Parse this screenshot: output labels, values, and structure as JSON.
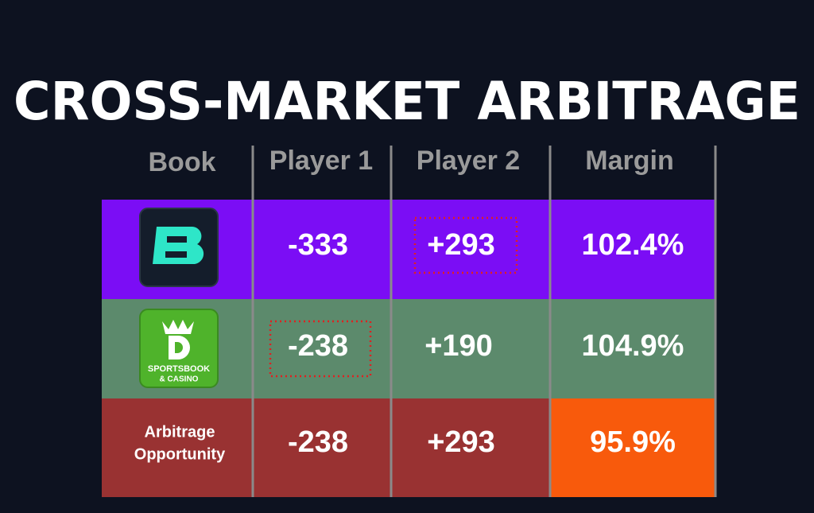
{
  "title": "CROSS-MARKET ARBITRAGE",
  "table": {
    "columns": [
      "Book",
      "Player 1",
      "Player 2",
      "Margin"
    ],
    "rows": [
      {
        "cells": [
          "-333",
          "+293",
          "102.4%"
        ]
      },
      {
        "logo": [
          "SPORTSBOOK",
          "& CASINO"
        ],
        "cells": [
          "-238",
          "+190",
          "104.9%"
        ]
      },
      {
        "book": [
          "Arbitrage",
          "Opportunity"
        ],
        "cells": [
          "-238",
          "+293",
          "95.9%"
        ]
      }
    ]
  }
}
